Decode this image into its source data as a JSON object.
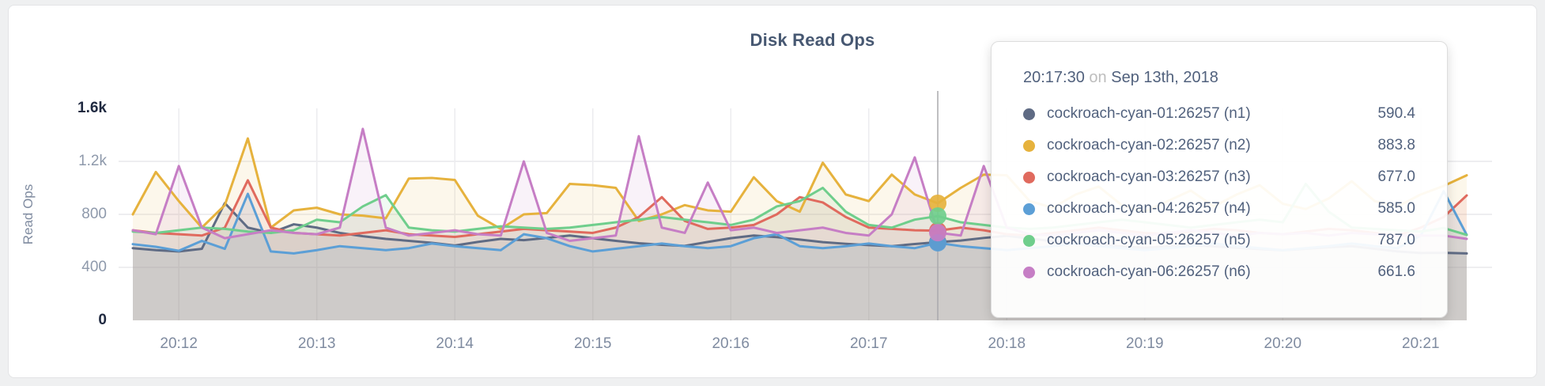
{
  "chart": {
    "title": "Disk Read Ops",
    "ylabel": "Read Ops"
  },
  "tooltip": {
    "time": "20:17:30",
    "conjunction": "on",
    "date": "Sep 13th, 2018",
    "rows": [
      {
        "label": "cockroach-cyan-01:26257 (n1)",
        "value": "590.4",
        "color": "#5f6b84"
      },
      {
        "label": "cockroach-cyan-02:26257 (n2)",
        "value": "883.8",
        "color": "#e6b23d"
      },
      {
        "label": "cockroach-cyan-03:26257 (n3)",
        "value": "677.0",
        "color": "#e06a5e"
      },
      {
        "label": "cockroach-cyan-04:26257 (n4)",
        "value": "585.0",
        "color": "#5c9fd6"
      },
      {
        "label": "cockroach-cyan-05:26257 (n5)",
        "value": "787.0",
        "color": "#6fce8c"
      },
      {
        "label": "cockroach-cyan-06:26257 (n6)",
        "value": "661.6",
        "color": "#c67ec5"
      }
    ]
  },
  "chart_data": {
    "type": "line",
    "title": "Disk Read Ops",
    "xlabel": "",
    "ylabel": "Read Ops",
    "ylim": [
      0,
      1600
    ],
    "grid": true,
    "x_start": "20:11:40",
    "x_step_seconds": 10,
    "x_tick_labels": [
      "20:12",
      "20:13",
      "20:14",
      "20:15",
      "20:16",
      "20:17",
      "20:18",
      "20:19",
      "20:20",
      "20:21"
    ],
    "x_tick_indices": [
      2,
      8,
      14,
      20,
      26,
      32,
      38,
      44,
      50,
      56
    ],
    "y_ticks": [
      {
        "value": 1600,
        "label": "1.6k",
        "emph": true,
        "grid": false
      },
      {
        "value": 1200,
        "label": "1.2k",
        "emph": false,
        "grid": true
      },
      {
        "value": 800,
        "label": "800",
        "emph": false,
        "grid": true
      },
      {
        "value": 400,
        "label": "400",
        "emph": false,
        "grid": true
      },
      {
        "value": 0,
        "label": "0",
        "emph": true,
        "grid": false
      }
    ],
    "hover_index": 35,
    "hover_time": "20:17:30",
    "hover_date": "Sep 13th, 2018",
    "legend_position": "tooltip",
    "series": [
      {
        "name": "cockroach-cyan-01:26257 (n1)",
        "color": "#5f6b84",
        "value_at_hover": 590.4,
        "values": [
          545,
          530,
          520,
          540,
          885,
          700,
          660,
          725,
          700,
          660,
          635,
          615,
          600,
          585,
          565,
          592,
          615,
          605,
          622,
          640,
          620,
          600,
          582,
          570,
          562,
          592,
          620,
          640,
          628,
          610,
          590,
          578,
          568,
          560,
          576,
          590.4,
          602,
          622,
          638,
          618,
          598,
          580,
          570,
          558,
          548,
          558,
          568,
          558,
          548,
          538,
          528,
          540,
          552,
          560,
          540,
          520,
          508,
          510,
          505
        ]
      },
      {
        "name": "cockroach-cyan-02:26257 (n2)",
        "color": "#e6b23d",
        "value_at_hover": 883.8,
        "values": [
          800,
          1120,
          900,
          700,
          870,
          1373,
          700,
          830,
          850,
          800,
          790,
          770,
          1070,
          1075,
          1060,
          790,
          690,
          800,
          810,
          1030,
          1020,
          1000,
          750,
          800,
          870,
          830,
          820,
          1080,
          900,
          820,
          1190,
          950,
          900,
          1100,
          950,
          883.8,
          1000,
          1100,
          1095,
          900,
          850,
          950,
          1010,
          870,
          820,
          900,
          980,
          860,
          950,
          1020,
          880,
          840,
          920,
          1050,
          900,
          860,
          950,
          1015,
          1095
        ]
      },
      {
        "name": "cockroach-cyan-03:26257 (n3)",
        "color": "#e06a5e",
        "value_at_hover": 677.0,
        "values": [
          680,
          660,
          650,
          640,
          700,
          1057,
          700,
          660,
          650,
          640,
          660,
          680,
          650,
          640,
          630,
          650,
          670,
          690,
          680,
          670,
          660,
          700,
          780,
          930,
          750,
          690,
          700,
          720,
          800,
          930,
          890,
          780,
          700,
          690,
          680,
          677,
          700,
          680,
          650,
          640,
          660,
          680,
          700,
          680,
          660,
          650,
          670,
          690,
          680,
          660,
          650,
          670,
          690,
          680,
          660,
          640,
          700,
          780,
          943
        ]
      },
      {
        "name": "cockroach-cyan-04:26257 (n4)",
        "color": "#5c9fd6",
        "value_at_hover": 585.0,
        "values": [
          575,
          555,
          525,
          600,
          540,
          955,
          520,
          505,
          530,
          560,
          545,
          530,
          545,
          580,
          560,
          545,
          530,
          650,
          620,
          560,
          520,
          540,
          560,
          580,
          560,
          545,
          560,
          620,
          650,
          560,
          545,
          560,
          580,
          560,
          545,
          585,
          560,
          545,
          530,
          545,
          560,
          580,
          560,
          545,
          530,
          545,
          560,
          580,
          560,
          545,
          530,
          545,
          560,
          580,
          560,
          545,
          640,
          975,
          645
        ]
      },
      {
        "name": "cockroach-cyan-05:26257 (n5)",
        "color": "#6fce8c",
        "value_at_hover": 787.0,
        "values": [
          670,
          660,
          680,
          700,
          690,
          670,
          660,
          680,
          760,
          740,
          860,
          945,
          700,
          680,
          670,
          690,
          710,
          700,
          690,
          700,
          720,
          740,
          760,
          780,
          760,
          740,
          720,
          760,
          860,
          900,
          1000,
          820,
          720,
          700,
          760,
          787,
          740,
          720,
          700,
          690,
          700,
          720,
          740,
          760,
          740,
          720,
          700,
          720,
          740,
          760,
          740,
          1030,
          820,
          700,
          690,
          680,
          670,
          697,
          645
        ]
      },
      {
        "name": "cockroach-cyan-06:26257 (n6)",
        "color": "#c67ec5",
        "value_at_hover": 661.6,
        "values": [
          680,
          650,
          1165,
          700,
          620,
          650,
          680,
          660,
          650,
          700,
          1445,
          700,
          640,
          660,
          680,
          650,
          640,
          1200,
          660,
          600,
          620,
          640,
          1390,
          700,
          660,
          1040,
          680,
          700,
          660,
          680,
          700,
          660,
          640,
          800,
          1230,
          661.6,
          640,
          1165,
          700,
          650,
          640,
          660,
          680,
          660,
          640,
          660,
          680,
          660,
          640,
          660,
          650,
          660,
          640,
          660,
          650,
          640,
          640,
          640,
          615
        ]
      }
    ]
  }
}
